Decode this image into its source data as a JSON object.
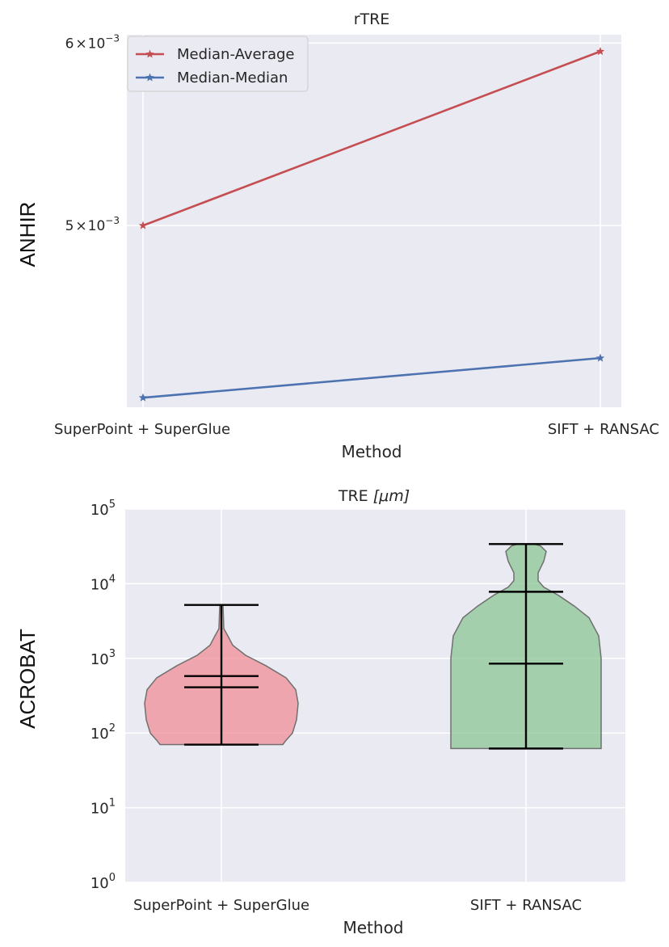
{
  "chart_data": [
    {
      "type": "line",
      "title": "rTRE",
      "xlabel": "Method",
      "ylabel": "ANHIR",
      "yscale": "log",
      "categories": [
        "SuperPoint + SuperGlue",
        "SIFT + RANSAC"
      ],
      "yticks": [
        {
          "value": 0.005,
          "base": "5",
          "exp": "−3",
          "mult": "×",
          "ten": "10"
        },
        {
          "value": 0.006,
          "base": "6",
          "exp": "−3",
          "mult": "×",
          "ten": "10"
        }
      ],
      "ylim": [
        0.00417,
        0.00605
      ],
      "legend_position": "upper-left",
      "series": [
        {
          "name": "Median-Average",
          "color": "#c44e52",
          "marker": "star",
          "values": [
            0.005,
            0.00595
          ]
        },
        {
          "name": "Median-Median",
          "color": "#4c72b0",
          "marker": "star",
          "values": [
            0.00421,
            0.00438
          ]
        }
      ]
    },
    {
      "type": "violin",
      "title": "TRE [μm]",
      "title_main": "TRE ",
      "title_math": "[μm]",
      "xlabel": "Method",
      "ylabel": "ACROBAT",
      "yscale": "log",
      "categories": [
        "SuperPoint + SuperGlue",
        "SIFT + RANSAC"
      ],
      "yticks": [
        {
          "value": 1,
          "base": "10",
          "exp": "0"
        },
        {
          "value": 10,
          "base": "10",
          "exp": "1"
        },
        {
          "value": 100,
          "base": "10",
          "exp": "2"
        },
        {
          "value": 1000,
          "base": "10",
          "exp": "3"
        },
        {
          "value": 10000,
          "base": "10",
          "exp": "4"
        },
        {
          "value": 100000,
          "base": "10",
          "exp": "5"
        }
      ],
      "ylim": [
        1,
        100000
      ],
      "violins": [
        {
          "name": "SuperPoint + SuperGlue",
          "color": "#f08d95",
          "min": 70,
          "max": 5200,
          "lines": [
            410,
            580
          ]
        },
        {
          "name": "SIFT + RANSAC",
          "color": "#8cc596",
          "min": 62,
          "max": 34000,
          "lines": [
            850,
            7800
          ]
        }
      ]
    }
  ]
}
